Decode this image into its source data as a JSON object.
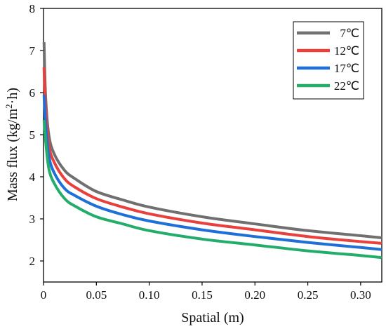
{
  "chart_data": {
    "type": "line",
    "xlabel": "Spatial (m)",
    "ylabel_main": "Mass flux (kg/m",
    "ylabel_sup": "2",
    "ylabel_tail": "·h)",
    "xlim": [
      0,
      0.32
    ],
    "ylim": [
      1.5,
      8
    ],
    "x_ticks": [
      0,
      0.05,
      0.1,
      0.15,
      0.2,
      0.25,
      0.3
    ],
    "x_tick_labels": [
      "0",
      "0.05",
      "0.10",
      "0.15",
      "0.20",
      "0.25",
      "0.30"
    ],
    "y_ticks": [
      2,
      3,
      4,
      5,
      6,
      7,
      8
    ],
    "y_tick_labels": [
      "2",
      "3",
      "4",
      "5",
      "6",
      "7",
      "8"
    ],
    "grid": false,
    "legend_position": "top-right",
    "x": [
      0.0005,
      0.002,
      0.005,
      0.01,
      0.02,
      0.03,
      0.05,
      0.075,
      0.1,
      0.15,
      0.2,
      0.25,
      0.3,
      0.32
    ],
    "series": [
      {
        "name": "7℃",
        "color": "#707070",
        "values": [
          7.2,
          5.9,
          5.0,
          4.55,
          4.15,
          3.95,
          3.65,
          3.45,
          3.28,
          3.05,
          2.88,
          2.72,
          2.6,
          2.55
        ]
      },
      {
        "name": "12℃",
        "color": "#e8403c",
        "values": [
          6.6,
          5.6,
          4.75,
          4.35,
          3.95,
          3.75,
          3.48,
          3.28,
          3.12,
          2.9,
          2.74,
          2.58,
          2.46,
          2.42
        ]
      },
      {
        "name": "17℃",
        "color": "#1f6fd8",
        "values": [
          5.95,
          5.25,
          4.5,
          4.1,
          3.72,
          3.55,
          3.3,
          3.1,
          2.95,
          2.74,
          2.58,
          2.44,
          2.32,
          2.27
        ]
      },
      {
        "name": "22℃",
        "color": "#22ad6a",
        "values": [
          5.35,
          4.85,
          4.2,
          3.85,
          3.48,
          3.3,
          3.05,
          2.88,
          2.72,
          2.52,
          2.38,
          2.24,
          2.13,
          2.08
        ]
      }
    ]
  }
}
